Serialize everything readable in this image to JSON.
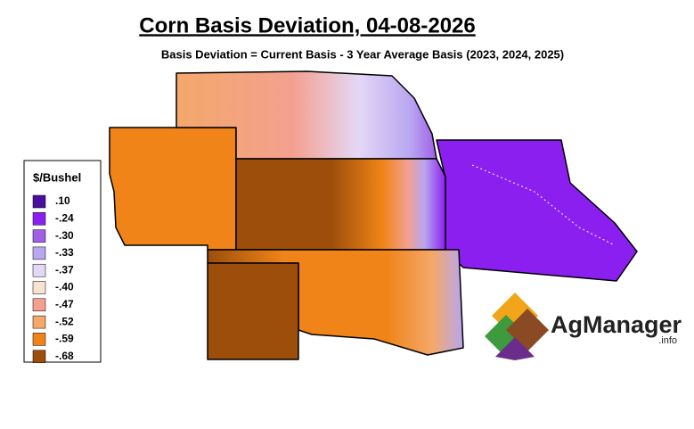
{
  "title": "Corn Basis Deviation, 04-08-2026",
  "subtitle": "Basis Deviation = Current Basis - 3 Year Average Basis (2023, 2024, 2025)",
  "legend": {
    "title": "$/Bushel",
    "items": [
      {
        "label": ".10",
        "color": "#4b0f9e"
      },
      {
        "label": "-.24",
        "color": "#8b1ff0"
      },
      {
        "label": "-.30",
        "color": "#a260e8"
      },
      {
        "label": "-.33",
        "color": "#b8a6f0"
      },
      {
        "label": "-.37",
        "color": "#e4d8f6"
      },
      {
        "label": "-.40",
        "color": "#f8e2d0"
      },
      {
        "label": "-.47",
        "color": "#f4a090"
      },
      {
        "label": "-.52",
        "color": "#f4a86a"
      },
      {
        "label": "-.59",
        "color": "#f08418"
      },
      {
        "label": "-.68",
        "color": "#9c4e0a"
      }
    ]
  },
  "logo": {
    "name": "AgManager",
    "suffix": ".info"
  }
}
